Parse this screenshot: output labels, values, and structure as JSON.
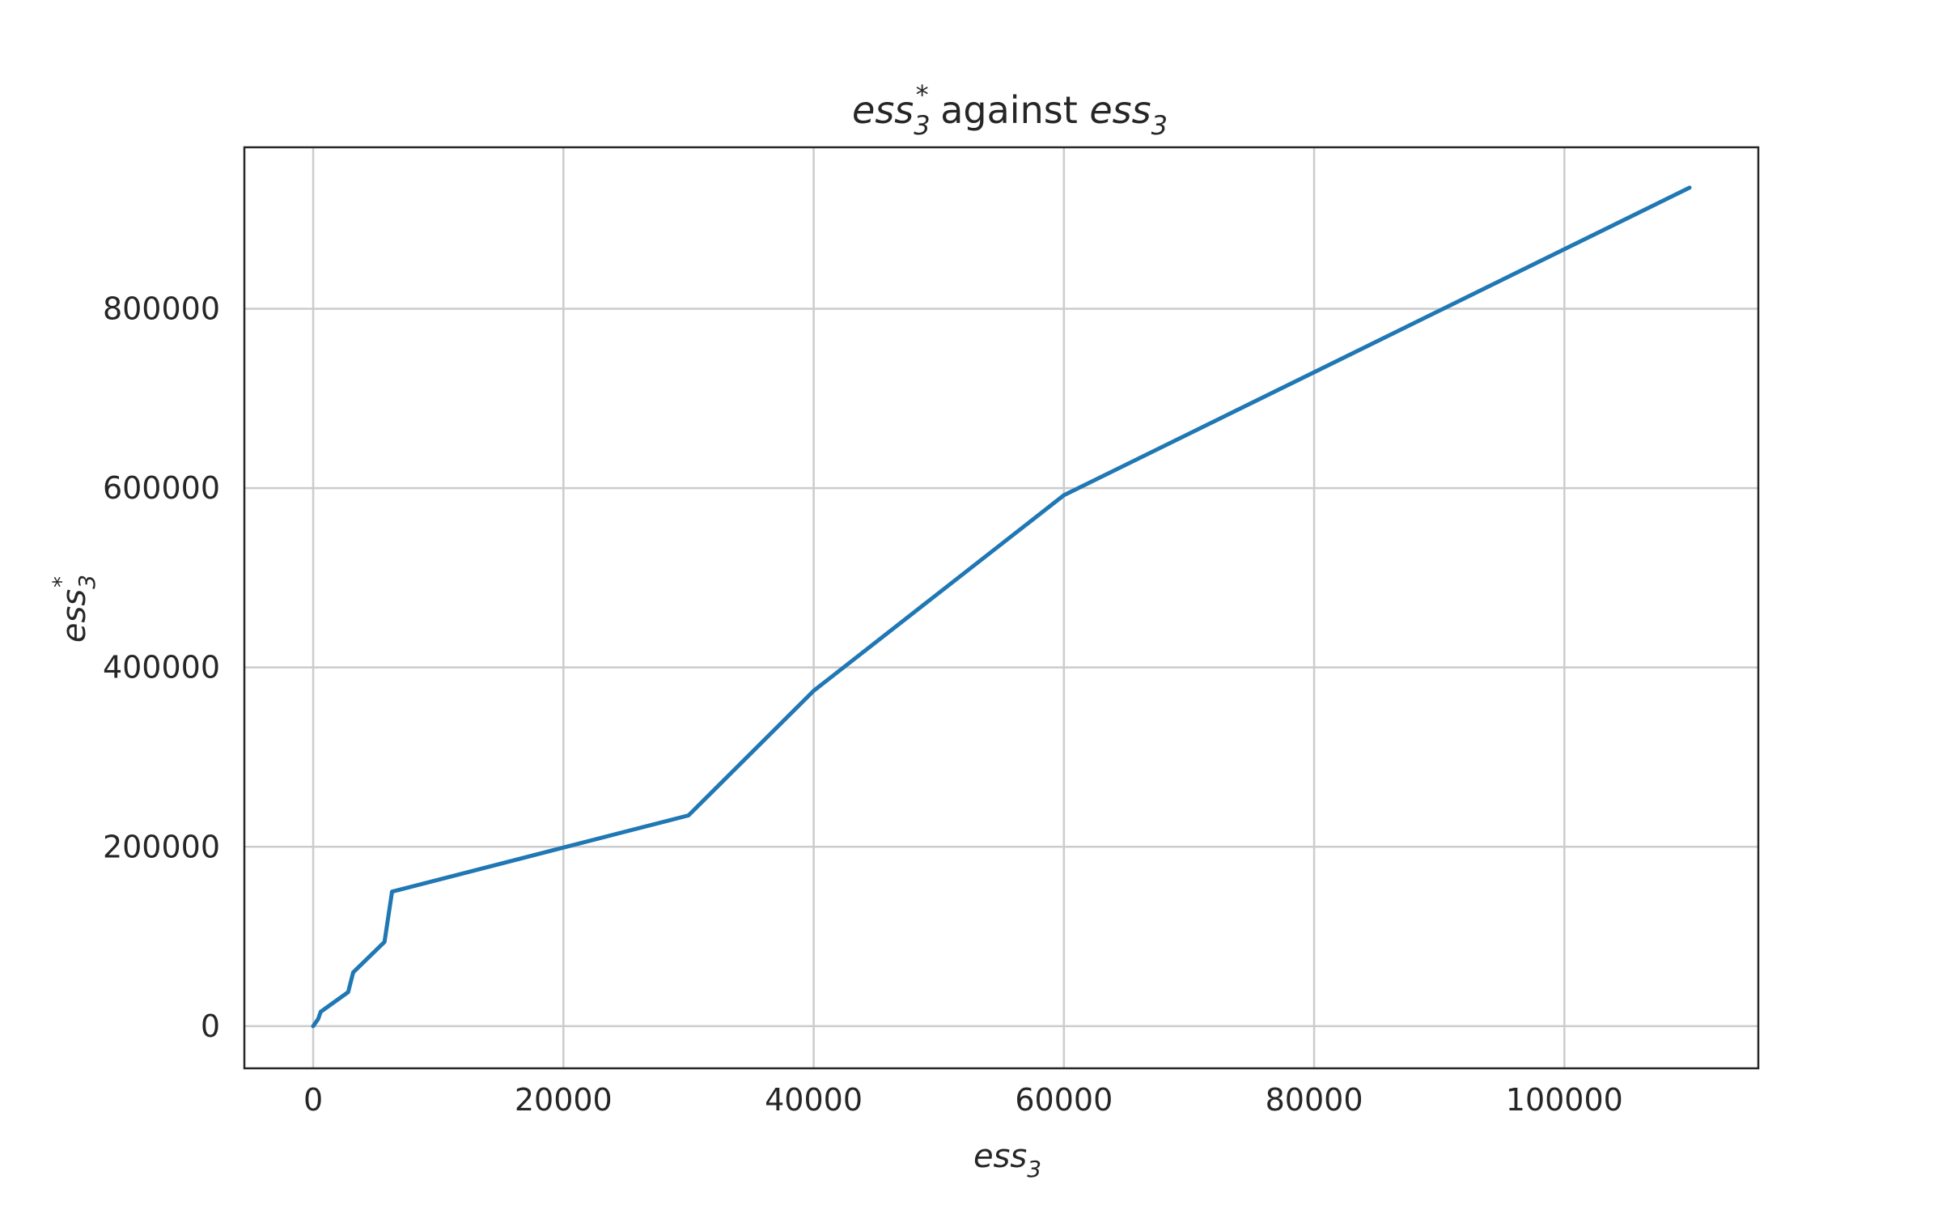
{
  "chart_data": {
    "type": "line",
    "title": {
      "var": "ess",
      "sub": "3",
      "sup": "*",
      "middle": " against ",
      "var2": "ess",
      "sub2": "3"
    },
    "xlabel": {
      "var": "ess",
      "sub": "3"
    },
    "ylabel": {
      "var": "ess",
      "sub": "3",
      "sup": "*"
    },
    "xlim": [
      -5500,
      115500
    ],
    "ylim": [
      -47000,
      980000
    ],
    "xticks": [
      0,
      20000,
      40000,
      60000,
      80000,
      100000
    ],
    "xtick_labels": [
      "0",
      "20000",
      "40000",
      "60000",
      "80000",
      "100000"
    ],
    "yticks": [
      0,
      200000,
      400000,
      600000,
      800000
    ],
    "ytick_labels": [
      "0",
      "200000",
      "400000",
      "600000",
      "800000"
    ],
    "grid": true,
    "series": [
      {
        "color": "#1f77b4",
        "x": [
          0,
          400,
          600,
          2800,
          3200,
          5700,
          6300,
          30000,
          40000,
          60000,
          110000
        ],
        "y": [
          0,
          8000,
          16000,
          38000,
          60000,
          94000,
          150000,
          235000,
          374000,
          592000,
          935000
        ]
      }
    ]
  }
}
